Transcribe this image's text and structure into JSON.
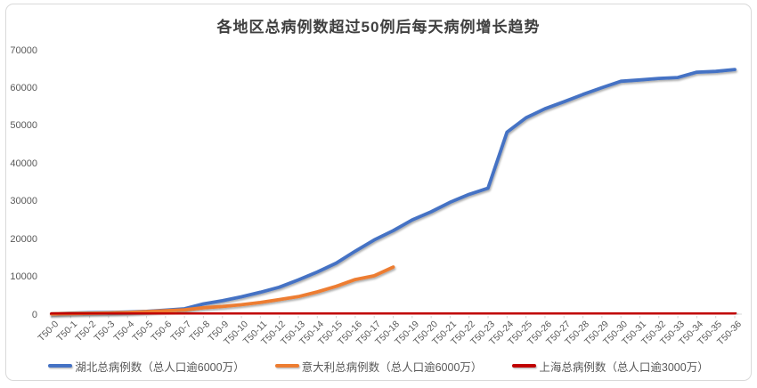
{
  "chart_data": {
    "type": "line",
    "title": "各地区总病例数超过50例后每天病例增长趋势",
    "categories": [
      "T50-0",
      "T50-1",
      "T50-2",
      "T50-3",
      "T50-4",
      "T50-5",
      "T50-6",
      "T50-7",
      "T50-8",
      "T50-9",
      "T50-10",
      "T50-11",
      "T50-12",
      "T50-13",
      "T50-14",
      "T50-15",
      "T50-16",
      "T50-17",
      "T50-18",
      "T50-19",
      "T50-20",
      "T50-21",
      "T50-22",
      "T50-23",
      "T50-24",
      "T50-25",
      "T50-26",
      "T50-27",
      "T50-28",
      "T50-29",
      "T50-30",
      "T50-31",
      "T50-32",
      "T50-33",
      "T50-34",
      "T50-35",
      "T50-36"
    ],
    "series": [
      {
        "name": "湖北总病例数（总人口逾6000万）",
        "color": "#4472C4",
        "values": [
          60,
          270,
          375,
          444,
          549,
          729,
          1052,
          1423,
          2714,
          3554,
          4586,
          5806,
          7153,
          9074,
          11177,
          13522,
          16678,
          19665,
          22112,
          24953,
          27100,
          29631,
          31728,
          33366,
          48206,
          51986,
          54406,
          56249,
          58182,
          59989,
          61682,
          62031,
          62442,
          62662,
          64084,
          64287,
          64786
        ]
      },
      {
        "name": "意大利总病例数（总人口逾6000万）",
        "color": "#ED7D31",
        "values": [
          79,
          155,
          229,
          322,
          453,
          655,
          888,
          1128,
          1694,
          2036,
          2502,
          3089,
          3858,
          4636,
          5883,
          7375,
          9172,
          10149,
          12462
        ]
      },
      {
        "name": "上海总病例数（总人口逾3000万）",
        "color": "#C00000",
        "values": [
          53,
          66,
          96,
          101,
          128,
          153,
          177,
          193,
          208,
          233,
          254,
          269,
          281,
          292,
          295,
          302,
          306,
          313,
          318,
          321,
          326,
          328,
          331,
          333,
          333,
          334,
          334,
          335,
          335,
          335,
          336,
          337,
          337,
          337,
          337,
          337,
          338
        ]
      }
    ],
    "xlabel": "",
    "ylabel": "",
    "ylim": [
      0,
      70000
    ],
    "yticks": [
      0,
      10000,
      20000,
      30000,
      40000,
      50000,
      60000,
      70000
    ],
    "grid": false,
    "legend_position": "bottom",
    "axis_color": "#D9D9D9",
    "tick_color": "#BFBFBF",
    "text_color": "#595959",
    "title_color": "#404040"
  }
}
